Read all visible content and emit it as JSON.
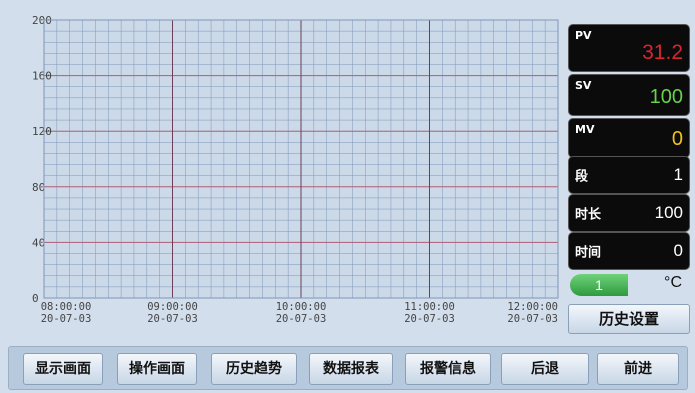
{
  "chart_data": {
    "type": "line",
    "y_ticks": [
      "200",
      "160",
      "120",
      "80",
      "40",
      "0"
    ],
    "ylim": [
      0,
      200
    ],
    "x_ticks": [
      {
        "time": "08:00:00",
        "date": "20-07-03"
      },
      {
        "time": "09:00:00",
        "date": "20-07-03"
      },
      {
        "time": "10:00:00",
        "date": "20-07-03"
      },
      {
        "time": "11:00:00",
        "date": "20-07-03"
      },
      {
        "time": "12:00:00",
        "date": "20-07-03"
      }
    ],
    "series": [],
    "grid": true,
    "colors": {
      "background": "#cbd9e8",
      "minor_grid": "#7f96b8",
      "major_grid_x": "#6e3f5a",
      "major_grid_y": "#b15f77"
    }
  },
  "panel": {
    "pv": {
      "label": "PV",
      "value": "31.2",
      "color": "#d9262e"
    },
    "sv": {
      "label": "SV",
      "value": "100",
      "color": "#66d24a"
    },
    "mv": {
      "label": "MV",
      "value": "0",
      "color": "#f2c21b"
    },
    "segment": {
      "label": "段",
      "value": "1"
    },
    "duration": {
      "label": "时长",
      "value": "100"
    },
    "time": {
      "label": "时间",
      "value": "0"
    },
    "indicator_value": "1",
    "unit": "°C",
    "history_settings_label": "历史设置"
  },
  "nav": {
    "buttons": [
      "显示画面",
      "操作画面",
      "历史趋势",
      "数据报表",
      "报警信息",
      "后退",
      "前进"
    ]
  }
}
